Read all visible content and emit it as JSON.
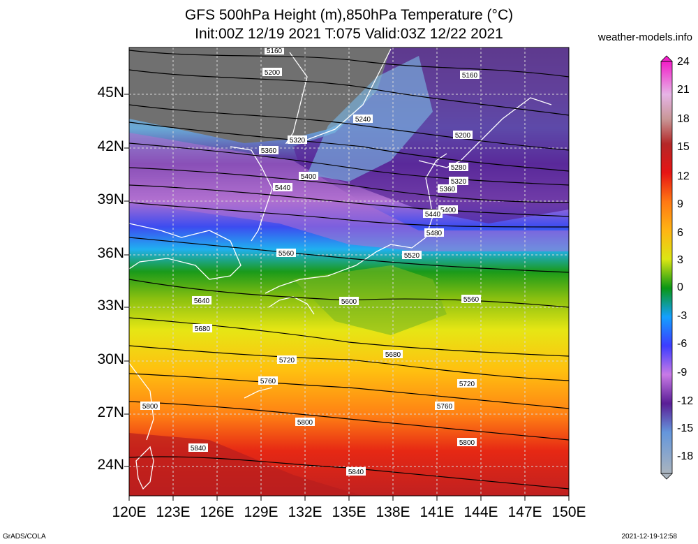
{
  "header": {
    "title_line1": "GFS 500hPa Height (m),850hPa Temperature (°C)",
    "title_line2": "Init:00Z 12/19 2021 T:075 Valid:03Z 12/22 2021",
    "site": "weather-models.info"
  },
  "axes": {
    "lat_labels": [
      "45N",
      "42N",
      "39N",
      "36N",
      "33N",
      "30N",
      "27N",
      "24N"
    ],
    "lon_labels": [
      "120E",
      "123E",
      "126E",
      "129E",
      "132E",
      "135E",
      "138E",
      "141E",
      "144E",
      "147E",
      "150E"
    ]
  },
  "colorbar": {
    "labels": [
      "24",
      "21",
      "18",
      "15",
      "12",
      "9",
      "6",
      "3",
      "0",
      "-3",
      "-6",
      "-9",
      "-12",
      "-15",
      "-18"
    ],
    "colors": [
      "#f21ec8",
      "#e6b4e6",
      "#c89696",
      "#b42828",
      "#e61414",
      "#ff7814",
      "#ffb414",
      "#dce614",
      "#0a9614",
      "#14a0ff",
      "#3c3cff",
      "#c87ae6",
      "#5a1e96",
      "#6496dc",
      "#aab4be"
    ]
  },
  "contour_labels": [
    "5160",
    "5200",
    "5160",
    "5240",
    "5200",
    "5320",
    "5360",
    "5280",
    "5320",
    "5400",
    "5360",
    "5440",
    "5400",
    "5440",
    "5480",
    "5560",
    "5520",
    "5640",
    "5600",
    "5560",
    "5680",
    "5680",
    "5720",
    "5760",
    "5720",
    "5800",
    "5760",
    "5800",
    "5800",
    "5840",
    "5840"
  ],
  "footer": {
    "left": "GrADS/COLA",
    "right": "2021-12-19-12:58"
  }
}
